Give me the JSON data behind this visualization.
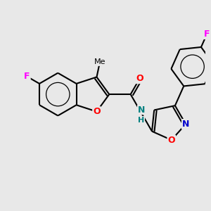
{
  "bg_color": "#e8e8e8",
  "bond_color": "#000000",
  "bond_lw": 1.5,
  "atom_colors": {
    "F": "#ff00ff",
    "O": "#ff0000",
    "N": "#0000cc",
    "N_amide": "#008080",
    "H_amide": "#008080"
  },
  "font_size": 9
}
